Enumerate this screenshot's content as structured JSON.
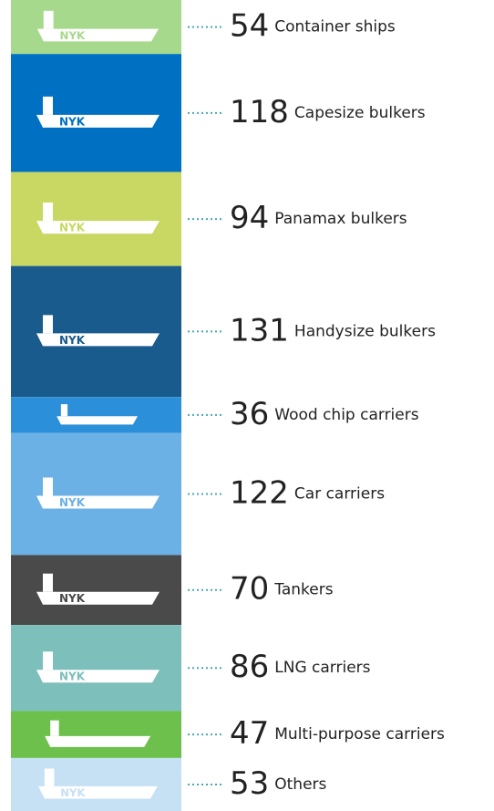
{
  "chart_data": {
    "type": "stacked_column",
    "ship_label": "NYK",
    "categories": [
      "Container ships",
      "Capesize bulkers",
      "Panamax bulkers",
      "Handysize bulkers",
      "Wood chip carriers",
      "Car carriers",
      "Tankers",
      "LNG carriers",
      "Multi-purpose carriers",
      "Others"
    ],
    "values": [
      54,
      118,
      94,
      131,
      36,
      122,
      70,
      86,
      47,
      53
    ],
    "colors": [
      "#a6d98b",
      "#0071c2",
      "#c9d862",
      "#1a5b8d",
      "#2b8fd9",
      "#6bb1e6",
      "#4a4a4a",
      "#7cbfbb",
      "#6dc04b",
      "#c6e0f4"
    ]
  }
}
